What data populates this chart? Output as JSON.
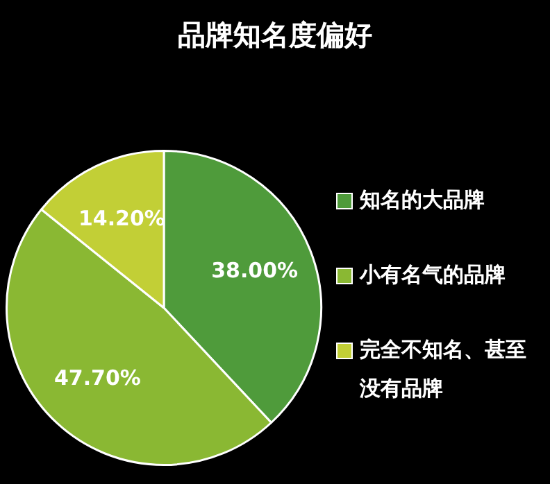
{
  "chart_data": {
    "type": "pie",
    "title": "品牌知名度偏好",
    "categories": [
      "知名的大品牌",
      "小有名气的品牌",
      "完全不知名、甚至没有品牌"
    ],
    "values": [
      38.0,
      47.7,
      14.2
    ],
    "value_labels": [
      "38.00%",
      "47.70%",
      "14.20%"
    ],
    "colors": [
      "#4f9b3b",
      "#8ab833",
      "#c2cf36"
    ],
    "legend": "right"
  }
}
